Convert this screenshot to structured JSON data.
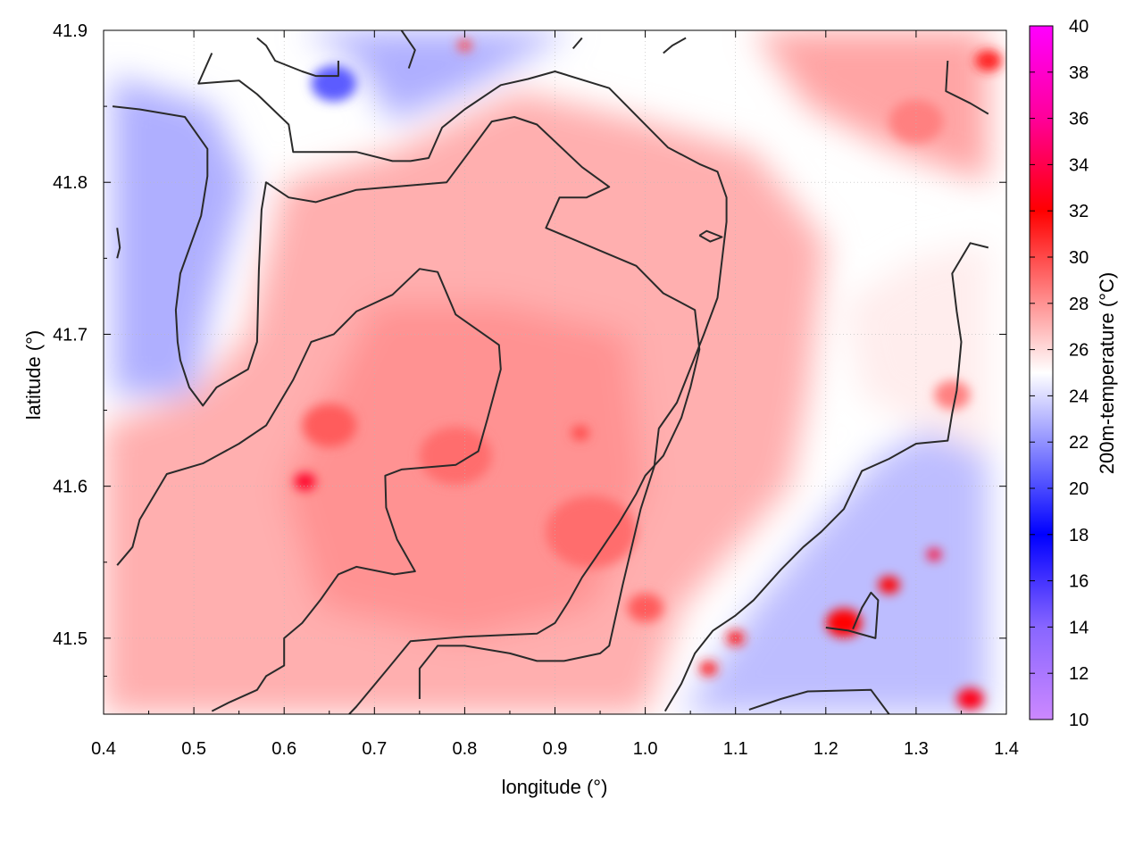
{
  "chart_data": {
    "type": "heatmap",
    "xlabel": "longitude (°)",
    "ylabel": "latitude (°)",
    "colorbar_label": "200m-temperature (°C)",
    "xlim": [
      0.4,
      1.4
    ],
    "ylim": [
      41.45,
      41.9
    ],
    "x_ticks": [
      "0.4",
      "0.5",
      "0.6",
      "0.7",
      "0.8",
      "0.9",
      "1.0",
      "1.1",
      "1.2",
      "1.3",
      "1.4"
    ],
    "y_ticks": [
      "41.5",
      "41.6",
      "41.7",
      "41.8",
      "41.9"
    ],
    "colorbar_range": [
      10,
      40
    ],
    "colorbar_ticks": [
      "10",
      "12",
      "14",
      "16",
      "18",
      "20",
      "22",
      "24",
      "26",
      "28",
      "30",
      "32",
      "34",
      "36",
      "38",
      "40"
    ],
    "grid": true,
    "colormap": [
      {
        "v": 10,
        "color": "#cc88ff"
      },
      {
        "v": 14,
        "color": "#8866ff"
      },
      {
        "v": 18,
        "color": "#0000ff"
      },
      {
        "v": 25,
        "color": "#ffffff"
      },
      {
        "v": 32,
        "color": "#ff0000"
      },
      {
        "v": 36,
        "color": "#ff0099"
      },
      {
        "v": 40,
        "color": "#ff00ff"
      }
    ],
    "contour_color": "#2a2a2a",
    "heat_regions": [
      {
        "poly": [
          [
            0.4,
            41.64
          ],
          [
            0.5,
            41.66
          ],
          [
            0.56,
            41.7
          ],
          [
            0.6,
            41.8
          ],
          [
            0.72,
            41.82
          ],
          [
            0.86,
            41.86
          ],
          [
            1.0,
            41.84
          ],
          [
            1.12,
            41.82
          ],
          [
            1.2,
            41.76
          ],
          [
            1.18,
            41.66
          ],
          [
            1.16,
            41.6
          ],
          [
            1.04,
            41.52
          ],
          [
            1.0,
            41.45
          ],
          [
            0.4,
            41.45
          ]
        ],
        "temp": 27.2
      },
      {
        "poly": [
          [
            0.6,
            41.6
          ],
          [
            0.7,
            41.72
          ],
          [
            0.84,
            41.72
          ],
          [
            0.98,
            41.7
          ],
          [
            1.0,
            41.6
          ],
          [
            0.94,
            41.52
          ],
          [
            0.8,
            41.5
          ],
          [
            0.64,
            41.52
          ]
        ],
        "temp": 28.0
      },
      {
        "poly": [
          [
            0.41,
            41.87
          ],
          [
            0.52,
            41.85
          ],
          [
            0.56,
            41.8
          ],
          [
            0.52,
            41.72
          ],
          [
            0.5,
            41.66
          ],
          [
            0.41,
            41.66
          ]
        ],
        "temp": 22.8
      },
      {
        "poly": [
          [
            0.62,
            41.9
          ],
          [
            0.68,
            41.88
          ],
          [
            0.72,
            41.84
          ],
          [
            0.8,
            41.86
          ],
          [
            0.86,
            41.88
          ],
          [
            0.92,
            41.9
          ]
        ],
        "temp": 22.8
      },
      {
        "poly": [
          [
            1.04,
            41.45
          ],
          [
            1.12,
            41.52
          ],
          [
            1.2,
            41.58
          ],
          [
            1.26,
            41.62
          ],
          [
            1.32,
            41.64
          ],
          [
            1.38,
            41.66
          ],
          [
            1.38,
            41.45
          ]
        ],
        "temp": 23.2
      },
      {
        "poly": [
          [
            1.22,
            41.72
          ],
          [
            1.3,
            41.75
          ],
          [
            1.38,
            41.76
          ],
          [
            1.38,
            41.62
          ],
          [
            1.3,
            41.64
          ],
          [
            1.24,
            41.66
          ]
        ],
        "temp": 25.5
      },
      {
        "poly": [
          [
            1.12,
            41.9
          ],
          [
            1.38,
            41.9
          ],
          [
            1.38,
            41.8
          ],
          [
            1.28,
            41.82
          ],
          [
            1.18,
            41.85
          ]
        ],
        "temp": 27.5
      }
    ],
    "heat_blobs": [
      {
        "x": 0.623,
        "y": 41.603,
        "r": 0.012,
        "temp": 33.0
      },
      {
        "x": 0.65,
        "y": 41.64,
        "r": 0.03,
        "temp": 29.5
      },
      {
        "x": 0.79,
        "y": 41.62,
        "r": 0.04,
        "temp": 29.0
      },
      {
        "x": 0.928,
        "y": 41.635,
        "r": 0.01,
        "temp": 30.0
      },
      {
        "x": 0.94,
        "y": 41.57,
        "r": 0.05,
        "temp": 29.0
      },
      {
        "x": 1.0,
        "y": 41.52,
        "r": 0.02,
        "temp": 29.5
      },
      {
        "x": 1.22,
        "y": 41.51,
        "r": 0.02,
        "temp": 32.0
      },
      {
        "x": 1.27,
        "y": 41.535,
        "r": 0.012,
        "temp": 32.0
      },
      {
        "x": 1.32,
        "y": 41.555,
        "r": 0.008,
        "temp": 33.0
      },
      {
        "x": 1.07,
        "y": 41.48,
        "r": 0.01,
        "temp": 31.0
      },
      {
        "x": 1.1,
        "y": 41.5,
        "r": 0.01,
        "temp": 31.5
      },
      {
        "x": 1.36,
        "y": 41.46,
        "r": 0.015,
        "temp": 32.5
      },
      {
        "x": 1.38,
        "y": 41.88,
        "r": 0.015,
        "temp": 31.0
      },
      {
        "x": 1.3,
        "y": 41.84,
        "r": 0.03,
        "temp": 28.5
      },
      {
        "x": 0.8,
        "y": 41.89,
        "r": 0.008,
        "temp": 30.0
      },
      {
        "x": 1.34,
        "y": 41.66,
        "r": 0.02,
        "temp": 28.5
      },
      {
        "x": 0.655,
        "y": 41.865,
        "r": 0.025,
        "temp": 20.5
      }
    ],
    "contours": [
      [
        [
          0.415,
          41.548
        ],
        [
          0.432,
          41.56
        ],
        [
          0.44,
          41.578
        ],
        [
          0.47,
          41.608
        ],
        [
          0.51,
          41.615
        ],
        [
          0.55,
          41.628
        ],
        [
          0.58,
          41.64
        ],
        [
          0.61,
          41.67
        ],
        [
          0.63,
          41.695
        ],
        [
          0.655,
          41.7
        ],
        [
          0.68,
          41.715
        ],
        [
          0.72,
          41.726
        ],
        [
          0.75,
          41.743
        ],
        [
          0.77,
          41.741
        ],
        [
          0.79,
          41.713
        ],
        [
          0.838,
          41.693
        ],
        [
          0.84,
          41.677
        ],
        [
          0.825,
          41.644
        ],
        [
          0.815,
          41.623
        ],
        [
          0.79,
          41.614
        ],
        [
          0.73,
          41.611
        ],
        [
          0.712,
          41.607
        ],
        [
          0.713,
          41.586
        ],
        [
          0.725,
          41.565
        ],
        [
          0.745,
          41.544
        ],
        [
          0.722,
          41.542
        ],
        [
          0.68,
          41.547
        ],
        [
          0.66,
          41.542
        ],
        [
          0.64,
          41.525
        ],
        [
          0.62,
          41.51
        ],
        [
          0.6,
          41.5
        ],
        [
          0.6,
          41.482
        ],
        [
          0.58,
          41.475
        ],
        [
          0.57,
          41.466
        ],
        [
          0.54,
          41.458
        ],
        [
          0.52,
          41.452
        ]
      ],
      [
        [
          0.41,
          41.85
        ],
        [
          0.44,
          41.848
        ],
        [
          0.49,
          41.843
        ],
        [
          0.515,
          41.822
        ],
        [
          0.515,
          41.804
        ],
        [
          0.508,
          41.778
        ],
        [
          0.485,
          41.74
        ],
        [
          0.48,
          41.716
        ],
        [
          0.482,
          41.695
        ],
        [
          0.485,
          41.683
        ],
        [
          0.495,
          41.665
        ],
        [
          0.51,
          41.653
        ],
        [
          0.525,
          41.665
        ],
        [
          0.56,
          41.677
        ],
        [
          0.57,
          41.695
        ],
        [
          0.572,
          41.742
        ],
        [
          0.575,
          41.782
        ],
        [
          0.58,
          41.8
        ],
        [
          0.605,
          41.79
        ],
        [
          0.635,
          41.787
        ],
        [
          0.68,
          41.795
        ],
        [
          0.78,
          41.8
        ],
        [
          0.805,
          41.82
        ],
        [
          0.83,
          41.84
        ],
        [
          0.855,
          41.843
        ],
        [
          0.88,
          41.838
        ],
        [
          0.93,
          41.81
        ],
        [
          0.96,
          41.797
        ],
        [
          0.935,
          41.79
        ],
        [
          0.905,
          41.79
        ],
        [
          0.89,
          41.77
        ],
        [
          0.95,
          41.755
        ],
        [
          0.99,
          41.745
        ],
        [
          1.02,
          41.727
        ],
        [
          1.055,
          41.716
        ],
        [
          1.06,
          41.69
        ],
        [
          1.05,
          41.665
        ],
        [
          1.04,
          41.645
        ],
        [
          1.02,
          41.62
        ],
        [
          1.0,
          41.607
        ],
        [
          0.99,
          41.595
        ],
        [
          0.97,
          41.575
        ],
        [
          0.945,
          41.553
        ],
        [
          0.93,
          41.54
        ],
        [
          0.915,
          41.524
        ],
        [
          0.9,
          41.51
        ],
        [
          0.88,
          41.503
        ],
        [
          0.8,
          41.501
        ],
        [
          0.78,
          41.5
        ],
        [
          0.74,
          41.498
        ],
        [
          0.715,
          41.48
        ],
        [
          0.68,
          41.455
        ],
        [
          0.672,
          41.45
        ]
      ],
      [
        [
          0.75,
          41.46
        ],
        [
          0.75,
          41.48
        ],
        [
          0.77,
          41.495
        ],
        [
          0.8,
          41.495
        ],
        [
          0.85,
          41.49
        ],
        [
          0.88,
          41.485
        ],
        [
          0.91,
          41.485
        ],
        [
          0.95,
          41.49
        ],
        [
          0.96,
          41.495
        ],
        [
          0.975,
          41.535
        ],
        [
          0.985,
          41.56
        ],
        [
          0.995,
          41.585
        ],
        [
          1.01,
          41.613
        ],
        [
          1.015,
          41.638
        ],
        [
          1.035,
          41.655
        ],
        [
          1.065,
          41.7
        ],
        [
          1.08,
          41.724
        ],
        [
          1.09,
          41.774
        ],
        [
          1.09,
          41.79
        ],
        [
          1.08,
          41.807
        ],
        [
          1.06,
          41.812
        ],
        [
          1.025,
          41.823
        ],
        [
          0.98,
          41.85
        ],
        [
          0.96,
          41.862
        ],
        [
          0.9,
          41.873
        ],
        [
          0.87,
          41.868
        ],
        [
          0.84,
          41.864
        ],
        [
          0.8,
          41.848
        ],
        [
          0.775,
          41.836
        ],
        [
          0.76,
          41.816
        ],
        [
          0.74,
          41.814
        ],
        [
          0.72,
          41.814
        ],
        [
          0.68,
          41.82
        ],
        [
          0.61,
          41.82
        ],
        [
          0.605,
          41.838
        ],
        [
          0.57,
          41.858
        ],
        [
          0.55,
          41.867
        ],
        [
          0.505,
          41.865
        ],
        [
          0.52,
          41.885
        ]
      ],
      [
        [
          0.738,
          41.875
        ],
        [
          0.745,
          41.887
        ],
        [
          0.73,
          41.9
        ]
      ],
      [
        [
          0.92,
          41.888
        ],
        [
          0.93,
          41.895
        ]
      ],
      [
        [
          1.02,
          41.885
        ],
        [
          1.03,
          41.89
        ],
        [
          1.045,
          41.895
        ]
      ],
      [
        [
          1.335,
          41.88
        ],
        [
          1.333,
          41.86
        ],
        [
          1.36,
          41.852
        ],
        [
          1.38,
          41.845
        ]
      ],
      [
        [
          1.022,
          41.452
        ],
        [
          1.04,
          41.47
        ],
        [
          1.055,
          41.49
        ],
        [
          1.075,
          41.505
        ],
        [
          1.1,
          41.515
        ],
        [
          1.12,
          41.525
        ],
        [
          1.15,
          41.545
        ],
        [
          1.175,
          41.56
        ],
        [
          1.195,
          41.57
        ],
        [
          1.22,
          41.585
        ],
        [
          1.24,
          41.61
        ],
        [
          1.27,
          41.618
        ],
        [
          1.3,
          41.628
        ],
        [
          1.335,
          41.63
        ],
        [
          1.34,
          41.648
        ],
        [
          1.345,
          41.663
        ],
        [
          1.35,
          41.695
        ],
        [
          1.345,
          41.715
        ],
        [
          1.34,
          41.74
        ],
        [
          1.36,
          41.76
        ],
        [
          1.38,
          41.757
        ]
      ],
      [
        [
          1.115,
          41.453
        ],
        [
          1.15,
          41.46
        ],
        [
          1.18,
          41.465
        ],
        [
          1.25,
          41.466
        ],
        [
          1.27,
          41.45
        ]
      ],
      [
        [
          1.2,
          41.507
        ],
        [
          1.225,
          41.505
        ],
        [
          1.255,
          41.5
        ],
        [
          1.258,
          41.525
        ],
        [
          1.25,
          41.53
        ],
        [
          1.24,
          41.52
        ],
        [
          1.23,
          41.506
        ]
      ],
      [
        [
          1.06,
          41.765
        ],
        [
          1.068,
          41.768
        ],
        [
          1.085,
          41.764
        ],
        [
          1.072,
          41.761
        ],
        [
          1.06,
          41.765
        ]
      ],
      [
        [
          0.415,
          41.77
        ],
        [
          0.418,
          41.757
        ],
        [
          0.415,
          41.75
        ]
      ],
      [
        [
          0.57,
          41.895
        ],
        [
          0.58,
          41.89
        ],
        [
          0.59,
          41.88
        ],
        [
          0.62,
          41.873
        ],
        [
          0.635,
          41.87
        ],
        [
          0.66,
          41.87
        ],
        [
          0.66,
          41.88
        ]
      ]
    ]
  }
}
